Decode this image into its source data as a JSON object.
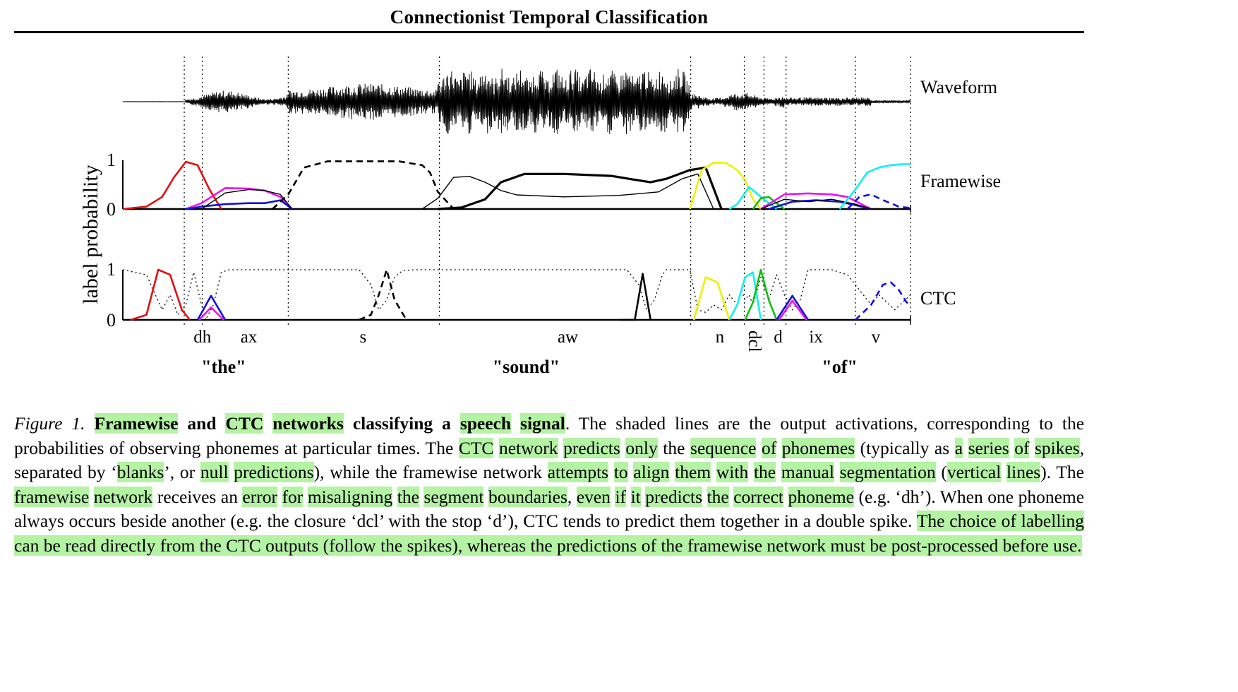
{
  "header": {
    "title": "Connectionist Temporal Classification"
  },
  "figure": {
    "panel_labels": {
      "waveform": "Waveform",
      "framewise": "Framewise",
      "ctc": "CTC"
    },
    "y_axis_label": "label probability",
    "y_ticks": {
      "top": "1",
      "bottom": "0"
    },
    "phonemes": [
      {
        "label": "dh",
        "t": 0.101
      },
      {
        "label": "ax",
        "t": 0.16
      },
      {
        "label": "s",
        "t": 0.305
      },
      {
        "label": "aw",
        "t": 0.565
      },
      {
        "label": "n",
        "t": 0.758
      },
      {
        "label": "dcl",
        "t": 0.803,
        "rotated": true
      },
      {
        "label": "d",
        "t": 0.832
      },
      {
        "label": "ix",
        "t": 0.88
      },
      {
        "label": "v",
        "t": 0.956
      }
    ],
    "words": [
      {
        "label": "\"the\"",
        "t": 0.128
      },
      {
        "label": "\"sound\"",
        "t": 0.512
      },
      {
        "label": "\"of\"",
        "t": 0.91
      }
    ],
    "segment_boundaries": [
      0.078,
      0.101,
      0.21,
      0.402,
      0.721,
      0.789,
      0.814,
      0.842,
      0.93,
      1.0
    ],
    "colors": {
      "red": "#e01010",
      "magenta": "#ee10ee",
      "blue": "#1010e0",
      "green": "#10c010",
      "yellow": "#f0f000",
      "cyan": "#10f0f0",
      "black": "#000000"
    }
  },
  "chart_data": [
    {
      "type": "line",
      "panel": "Framewise",
      "x_domain": [
        0,
        1
      ],
      "ylim": [
        0,
        1
      ],
      "series": [
        {
          "color": "red",
          "style": "solid",
          "x": [
            0.0,
            0.03,
            0.05,
            0.065,
            0.08,
            0.095,
            0.11,
            0.125
          ],
          "y": [
            0.0,
            0.05,
            0.25,
            0.65,
            0.97,
            0.9,
            0.4,
            0.0
          ]
        },
        {
          "color": "magenta",
          "style": "solid",
          "x": [
            0.08,
            0.1,
            0.13,
            0.16,
            0.18,
            0.2,
            0.215
          ],
          "y": [
            0.0,
            0.12,
            0.43,
            0.42,
            0.38,
            0.25,
            0.0
          ]
        },
        {
          "color": "blue",
          "style": "solid",
          "x": [
            0.08,
            0.1,
            0.13,
            0.16,
            0.18,
            0.2,
            0.215
          ],
          "y": [
            0.0,
            0.05,
            0.1,
            0.12,
            0.12,
            0.18,
            0.0
          ]
        },
        {
          "color": "black",
          "style": "thin",
          "x": [
            0.1,
            0.13,
            0.16,
            0.18,
            0.2,
            0.215
          ],
          "y": [
            0.0,
            0.33,
            0.4,
            0.38,
            0.3,
            0.0
          ]
        },
        {
          "color": "black",
          "style": "dashed",
          "x": [
            0.19,
            0.21,
            0.23,
            0.26,
            0.35,
            0.38,
            0.39,
            0.4,
            0.42
          ],
          "y": [
            0.0,
            0.3,
            0.85,
            0.98,
            0.98,
            0.9,
            0.75,
            0.35,
            0.0
          ]
        },
        {
          "color": "black",
          "style": "thin",
          "x": [
            0.38,
            0.4,
            0.42,
            0.44,
            0.46,
            0.48,
            0.5,
            0.56,
            0.63,
            0.68,
            0.71,
            0.73,
            0.75
          ],
          "y": [
            0.0,
            0.22,
            0.65,
            0.67,
            0.55,
            0.38,
            0.29,
            0.25,
            0.28,
            0.35,
            0.62,
            0.72,
            0.0
          ]
        },
        {
          "color": "black",
          "style": "thick",
          "x": [
            0.4,
            0.43,
            0.46,
            0.48,
            0.51,
            0.56,
            0.62,
            0.65,
            0.67,
            0.69,
            0.72,
            0.74,
            0.76
          ],
          "y": [
            0.0,
            0.03,
            0.2,
            0.55,
            0.72,
            0.72,
            0.68,
            0.6,
            0.55,
            0.62,
            0.8,
            0.85,
            0.0
          ]
        },
        {
          "color": "yellow",
          "style": "solid",
          "x": [
            0.72,
            0.735,
            0.75,
            0.765,
            0.78,
            0.79,
            0.8,
            0.81
          ],
          "y": [
            0.0,
            0.8,
            0.95,
            0.95,
            0.8,
            0.6,
            0.2,
            0.0
          ]
        },
        {
          "color": "cyan",
          "style": "solid",
          "x": [
            0.77,
            0.78,
            0.795,
            0.81,
            0.83
          ],
          "y": [
            0.0,
            0.1,
            0.45,
            0.25,
            0.0
          ]
        },
        {
          "color": "green",
          "style": "solid",
          "x": [
            0.8,
            0.81,
            0.82,
            0.83,
            0.84
          ],
          "y": [
            0.0,
            0.22,
            0.25,
            0.12,
            0.0
          ]
        },
        {
          "color": "magenta",
          "style": "solid",
          "x": [
            0.81,
            0.84,
            0.87,
            0.9,
            0.92,
            0.935,
            0.95
          ],
          "y": [
            0.0,
            0.3,
            0.32,
            0.3,
            0.25,
            0.12,
            0.0
          ]
        },
        {
          "color": "blue",
          "style": "solid",
          "x": [
            0.82,
            0.85,
            0.88,
            0.91,
            0.93,
            0.95
          ],
          "y": [
            0.0,
            0.15,
            0.18,
            0.15,
            0.08,
            0.0
          ]
        },
        {
          "color": "black",
          "style": "thin",
          "x": [
            0.81,
            0.84,
            0.87,
            0.9,
            0.93,
            0.95
          ],
          "y": [
            0.0,
            0.2,
            0.15,
            0.2,
            0.1,
            0.0
          ]
        },
        {
          "color": "cyan",
          "style": "solid",
          "x": [
            0.91,
            0.93,
            0.945,
            0.96,
            0.975,
            0.99,
            1.0
          ],
          "y": [
            0.0,
            0.4,
            0.75,
            0.85,
            0.9,
            0.92,
            0.92
          ]
        },
        {
          "color": "blue",
          "style": "dashed",
          "x": [
            0.92,
            0.935,
            0.95,
            0.96,
            0.97,
            0.985,
            1.0
          ],
          "y": [
            0.0,
            0.25,
            0.3,
            0.22,
            0.15,
            0.05,
            0.02
          ]
        }
      ]
    },
    {
      "type": "line",
      "panel": "CTC",
      "x_domain": [
        0,
        1
      ],
      "ylim": [
        0,
        1
      ],
      "series": [
        {
          "color": "black",
          "style": "dotted",
          "x": [
            0.0,
            0.03,
            0.05,
            0.06,
            0.07,
            0.08,
            0.09,
            0.1,
            0.105,
            0.115,
            0.125,
            0.135,
            0.3,
            0.315,
            0.325,
            0.335,
            0.345,
            0.355,
            0.37,
            0.38,
            0.64,
            0.655,
            0.665,
            0.675,
            0.685,
            0.69,
            0.7,
            0.72,
            0.73,
            0.74,
            0.75,
            0.76,
            0.77,
            0.78,
            0.785,
            0.79,
            0.795,
            0.8,
            0.81,
            0.82,
            0.83,
            0.84,
            0.85,
            0.86,
            0.87,
            0.88,
            0.9,
            0.92,
            0.94,
            0.95,
            0.96,
            0.98,
            1.0
          ],
          "y": [
            1.0,
            0.9,
            0.2,
            0.5,
            0.1,
            0.3,
            0.95,
            0.3,
            0.0,
            0.3,
            0.95,
            1.0,
            1.0,
            0.7,
            0.2,
            0.4,
            0.85,
            0.98,
            1.0,
            1.0,
            1.0,
            0.7,
            0.2,
            0.4,
            0.9,
            1.0,
            1.0,
            1.0,
            0.2,
            0.15,
            0.3,
            0.2,
            0.5,
            0.3,
            0.6,
            0.4,
            0.5,
            0.3,
            0.85,
            0.4,
            0.9,
            0.5,
            0.2,
            0.4,
            1.0,
            1.0,
            1.0,
            0.9,
            0.5,
            0.3,
            0.5,
            0.2,
            0.5
          ]
        },
        {
          "color": "red",
          "style": "solid",
          "x": [
            0.01,
            0.03,
            0.045,
            0.06,
            0.075,
            0.085
          ],
          "y": [
            0.0,
            0.1,
            1.0,
            0.9,
            0.2,
            0.0
          ]
        },
        {
          "color": "blue",
          "style": "solid",
          "x": [
            0.095,
            0.112,
            0.13
          ],
          "y": [
            0.0,
            0.48,
            0.0
          ]
        },
        {
          "color": "magenta",
          "style": "solid",
          "x": [
            0.097,
            0.112,
            0.128
          ],
          "y": [
            0.0,
            0.25,
            0.0
          ]
        },
        {
          "color": "black",
          "style": "dashed",
          "x": [
            0.3,
            0.315,
            0.325,
            0.335,
            0.345,
            0.36
          ],
          "y": [
            0.0,
            0.1,
            0.5,
            1.0,
            0.4,
            0.0
          ]
        },
        {
          "color": "black",
          "style": "solid",
          "x": [
            0.63,
            0.65,
            0.66,
            0.67
          ],
          "y": [
            0.0,
            0.0,
            0.92,
            0.0
          ]
        },
        {
          "color": "yellow",
          "style": "solid",
          "x": [
            0.725,
            0.74,
            0.755,
            0.77
          ],
          "y": [
            0.0,
            0.85,
            0.75,
            0.0
          ]
        },
        {
          "color": "cyan",
          "style": "solid",
          "x": [
            0.77,
            0.78,
            0.79,
            0.8,
            0.81
          ],
          "y": [
            0.0,
            0.3,
            0.85,
            0.95,
            0.0
          ]
        },
        {
          "color": "green",
          "style": "solid",
          "x": [
            0.79,
            0.8,
            0.81,
            0.82,
            0.83
          ],
          "y": [
            0.0,
            0.35,
            1.0,
            0.4,
            0.0
          ]
        },
        {
          "color": "blue",
          "style": "solid",
          "x": [
            0.83,
            0.85,
            0.87
          ],
          "y": [
            0.0,
            0.48,
            0.0
          ]
        },
        {
          "color": "magenta",
          "style": "solid",
          "x": [
            0.833,
            0.85,
            0.868
          ],
          "y": [
            0.0,
            0.38,
            0.0
          ]
        },
        {
          "color": "blue",
          "style": "dashed",
          "x": [
            0.93,
            0.95,
            0.965,
            0.975,
            0.985,
            0.995,
            1.0
          ],
          "y": [
            0.0,
            0.3,
            0.7,
            0.75,
            0.6,
            0.35,
            0.3
          ]
        }
      ]
    }
  ],
  "caption": {
    "segments": [
      {
        "text": "Figure 1.",
        "style": "fig-label"
      },
      {
        "text": " ",
        "style": ""
      },
      {
        "text": "Framewise",
        "style": "bold hl"
      },
      {
        "text": " and ",
        "style": "bold"
      },
      {
        "text": "CTC",
        "style": "bold hl"
      },
      {
        "text": " ",
        "style": "bold"
      },
      {
        "text": "networks",
        "style": "bold hl"
      },
      {
        "text": " classifying a ",
        "style": "bold"
      },
      {
        "text": "speech",
        "style": "bold hl"
      },
      {
        "text": " ",
        "style": "bold"
      },
      {
        "text": "signal",
        "style": "bold hl"
      },
      {
        "text": ". The shaded lines are the output activations, corresponding to the probabilities of observing phonemes at particular times.  The ",
        "style": ""
      },
      {
        "text": "CTC",
        "style": "hl"
      },
      {
        "text": " ",
        "style": ""
      },
      {
        "text": "network",
        "style": "hl"
      },
      {
        "text": " ",
        "style": ""
      },
      {
        "text": "predicts",
        "style": "hl"
      },
      {
        "text": " ",
        "style": ""
      },
      {
        "text": "only",
        "style": "hl"
      },
      {
        "text": " the ",
        "style": ""
      },
      {
        "text": "sequence",
        "style": "hl"
      },
      {
        "text": " ",
        "style": ""
      },
      {
        "text": "of",
        "style": "hl"
      },
      {
        "text": " ",
        "style": ""
      },
      {
        "text": "phonemes",
        "style": "hl"
      },
      {
        "text": " (typically as ",
        "style": ""
      },
      {
        "text": "a",
        "style": "hl"
      },
      {
        "text": " ",
        "style": ""
      },
      {
        "text": "series",
        "style": "hl"
      },
      {
        "text": " ",
        "style": ""
      },
      {
        "text": "of",
        "style": "hl"
      },
      {
        "text": " ",
        "style": ""
      },
      {
        "text": "spikes",
        "style": "hl"
      },
      {
        "text": ", separated by ‘",
        "style": ""
      },
      {
        "text": "blanks",
        "style": "hl"
      },
      {
        "text": "’, or ",
        "style": ""
      },
      {
        "text": "null",
        "style": "hl"
      },
      {
        "text": " ",
        "style": ""
      },
      {
        "text": "predictions",
        "style": "hl"
      },
      {
        "text": "), while the framewise network ",
        "style": ""
      },
      {
        "text": "attempts",
        "style": "hl"
      },
      {
        "text": " ",
        "style": ""
      },
      {
        "text": "to",
        "style": "hl"
      },
      {
        "text": " ",
        "style": ""
      },
      {
        "text": "align",
        "style": "hl"
      },
      {
        "text": " ",
        "style": ""
      },
      {
        "text": "them",
        "style": "hl"
      },
      {
        "text": " ",
        "style": ""
      },
      {
        "text": "with",
        "style": "hl"
      },
      {
        "text": " ",
        "style": ""
      },
      {
        "text": "the",
        "style": "hl"
      },
      {
        "text": " ",
        "style": ""
      },
      {
        "text": "manual",
        "style": "hl"
      },
      {
        "text": " ",
        "style": ""
      },
      {
        "text": "segmentation",
        "style": "hl"
      },
      {
        "text": " (",
        "style": ""
      },
      {
        "text": "vertical",
        "style": "hl"
      },
      {
        "text": " ",
        "style": ""
      },
      {
        "text": "lines",
        "style": "hl"
      },
      {
        "text": "). The ",
        "style": ""
      },
      {
        "text": "framewise",
        "style": "hl"
      },
      {
        "text": " ",
        "style": ""
      },
      {
        "text": "network",
        "style": "hl"
      },
      {
        "text": " receives an ",
        "style": ""
      },
      {
        "text": "error",
        "style": "hl"
      },
      {
        "text": " ",
        "style": ""
      },
      {
        "text": "for",
        "style": "hl"
      },
      {
        "text": " ",
        "style": ""
      },
      {
        "text": "misaligning",
        "style": "hl"
      },
      {
        "text": " ",
        "style": ""
      },
      {
        "text": "the",
        "style": "hl"
      },
      {
        "text": " ",
        "style": ""
      },
      {
        "text": "segment",
        "style": "hl"
      },
      {
        "text": " ",
        "style": ""
      },
      {
        "text": "boundaries",
        "style": "hl"
      },
      {
        "text": ", ",
        "style": ""
      },
      {
        "text": "even",
        "style": "hl"
      },
      {
        "text": " ",
        "style": ""
      },
      {
        "text": "if",
        "style": "hl"
      },
      {
        "text": " ",
        "style": ""
      },
      {
        "text": "it",
        "style": "hl"
      },
      {
        "text": " ",
        "style": ""
      },
      {
        "text": "predicts",
        "style": "hl"
      },
      {
        "text": " ",
        "style": ""
      },
      {
        "text": "the",
        "style": "hl"
      },
      {
        "text": " ",
        "style": ""
      },
      {
        "text": "correct",
        "style": "hl"
      },
      {
        "text": " ",
        "style": ""
      },
      {
        "text": "phoneme",
        "style": "hl"
      },
      {
        "text": " (e.g. ‘dh’).  When one phoneme always occurs beside another (e.g. the closure ‘dcl’ with the stop ‘d’), CTC tends to predict them together in a double spike. ",
        "style": ""
      },
      {
        "text": "The choice of labelling can be read directly from the CTC outputs (follow the spikes), whereas the predictions of the framewise network must be post-processed before use.",
        "style": "hl"
      }
    ]
  }
}
